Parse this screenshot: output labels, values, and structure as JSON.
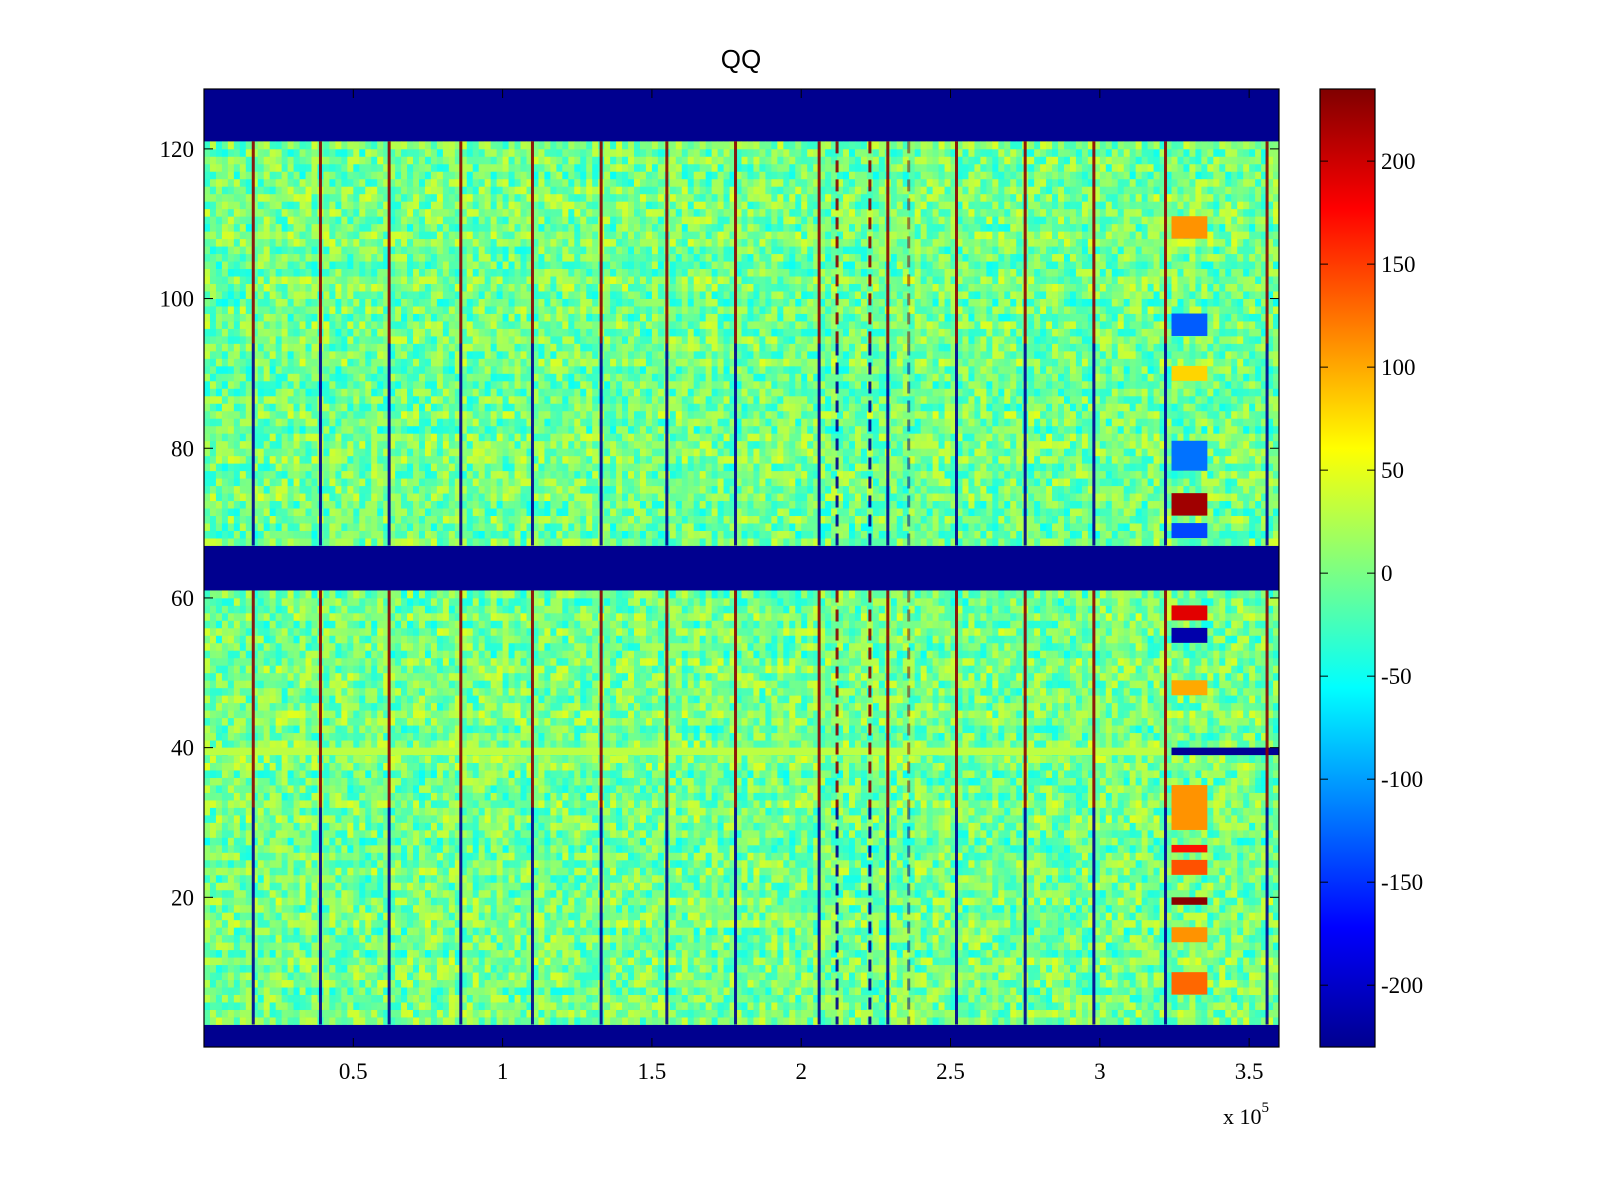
{
  "chart_data": {
    "type": "heatmap",
    "title": "QQ",
    "xlabel": "",
    "ylabel": "",
    "x_exponent_base": "x 10",
    "x_exponent_power": "5",
    "xlim": [
      0,
      3.6
    ],
    "ylim": [
      0,
      128
    ],
    "x_ticks": [
      0.5,
      1,
      1.5,
      2,
      2.5,
      3,
      3.5
    ],
    "x_tick_labels": [
      "0.5",
      "1",
      "1.5",
      "2",
      "2.5",
      "3",
      "3.5"
    ],
    "y_ticks": [
      20,
      40,
      60,
      80,
      100,
      120
    ],
    "y_tick_labels": [
      "20",
      "40",
      "60",
      "80",
      "100",
      "120"
    ],
    "colormap": "jet",
    "clim": [
      -230,
      235
    ],
    "colorbar_ticks": [
      200,
      150,
      100,
      50,
      0,
      -50,
      -100,
      -150,
      -200
    ],
    "colorbar_tick_labels": [
      "200",
      "150",
      "100",
      "50",
      "0",
      "-50",
      "-100",
      "-150",
      "-200"
    ],
    "background_value": -230,
    "background_color": "#00008f",
    "masked_row_bands": [
      [
        0,
        3
      ],
      [
        61,
        67
      ],
      [
        121,
        128
      ]
    ],
    "vertical_line_x": [
      0.165,
      0.39,
      0.62,
      0.86,
      1.1,
      1.33,
      1.55,
      1.78,
      2.06,
      2.29,
      2.52,
      2.75,
      2.98,
      3.22,
      3.56
    ],
    "dashed_line_x": [
      2.12,
      2.23
    ],
    "faint_line_x": [
      2.36
    ],
    "highlight_rows": [
      {
        "y": 39,
        "x_range": [
          0,
          3.22
        ],
        "value": 30
      },
      {
        "y": 39,
        "x_range": [
          3.24,
          3.6
        ],
        "value": -220
      }
    ],
    "anomaly_region_x": [
      3.24,
      3.36
    ],
    "anomaly_patches": [
      {
        "y": [
          108,
          111
        ],
        "value": 110
      },
      {
        "y": [
          95,
          98
        ],
        "value": -130
      },
      {
        "y": [
          89,
          91
        ],
        "value": 80
      },
      {
        "y": [
          77,
          81
        ],
        "value": -120
      },
      {
        "y": [
          71,
          74
        ],
        "value": 220
      },
      {
        "y": [
          68,
          70
        ],
        "value": -140
      },
      {
        "y": [
          57,
          59
        ],
        "value": 190
      },
      {
        "y": [
          54,
          56
        ],
        "value": -210
      },
      {
        "y": [
          47,
          49
        ],
        "value": 100
      },
      {
        "y": [
          29,
          35
        ],
        "value": 110
      },
      {
        "y": [
          26,
          27
        ],
        "value": 170
      },
      {
        "y": [
          23,
          25
        ],
        "value": 140
      },
      {
        "y": [
          19,
          20
        ],
        "value": 230
      },
      {
        "y": [
          14,
          16
        ],
        "value": 110
      },
      {
        "y": [
          7,
          10
        ],
        "value": 130
      }
    ],
    "typical_value_range": [
      -45,
      40
    ],
    "grid": false,
    "legend": "none",
    "colorbar": "right"
  }
}
